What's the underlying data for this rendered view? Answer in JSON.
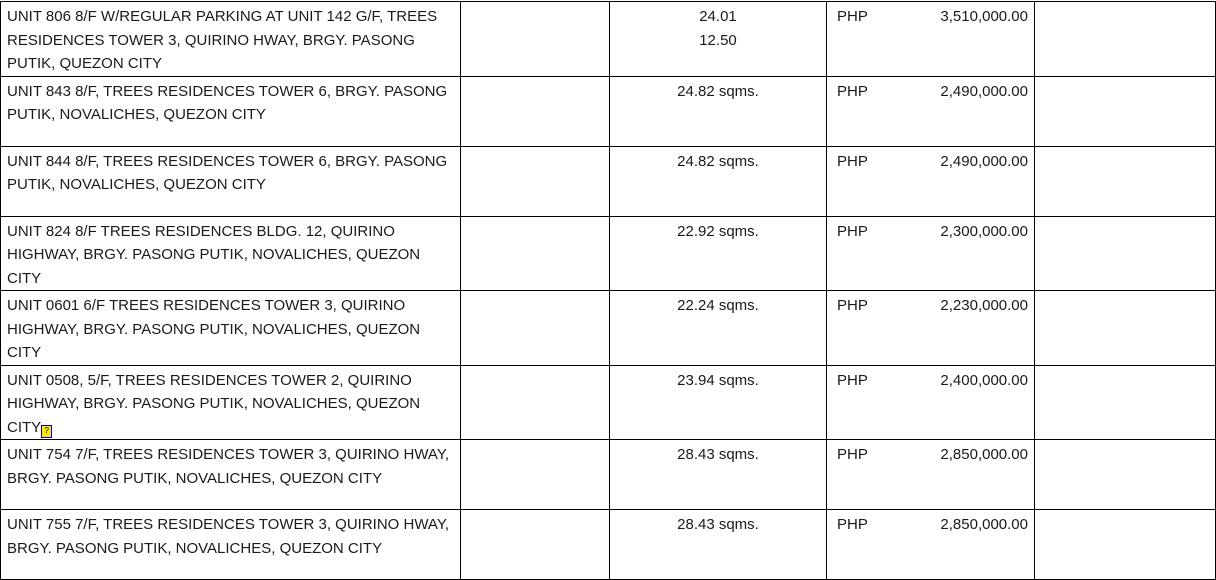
{
  "rows": [
    {
      "property": "UNIT 806 8/F W/REGULAR PARKING AT UNIT 142 G/F, TREES RESIDENCES TOWER 3,  QUIRINO HWAY, BRGY. PASONG PUTIK, QUEZON CITY",
      "area_lines": [
        "24.01",
        "12.50"
      ],
      "currency": "PHP",
      "amount": "3,510,000.00"
    },
    {
      "property": "UNIT 843 8/F, TREES RESIDENCES TOWER 6, BRGY. PASONG PUTIK, NOVALICHES, QUEZON CITY",
      "area_lines": [
        "24.82 sqms."
      ],
      "currency": "PHP",
      "amount": "2,490,000.00"
    },
    {
      "property": "UNIT 844 8/F, TREES RESIDENCES TOWER 6, BRGY. PASONG PUTIK, NOVALICHES, QUEZON CITY",
      "area_lines": [
        "24.82 sqms."
      ],
      "currency": "PHP",
      "amount": "2,490,000.00"
    },
    {
      "property": "UNIT 824 8/F TREES RESIDENCES BLDG. 12, QUIRINO HIGHWAY, BRGY. PASONG PUTIK, NOVALICHES, QUEZON CITY",
      "area_lines": [
        "22.92 sqms."
      ],
      "currency": "PHP",
      "amount": "2,300,000.00"
    },
    {
      "property": "UNIT 0601 6/F TREES RESIDENCES TOWER 3, QUIRINO HIGHWAY, BRGY. PASONG PUTIK, NOVALICHES, QUEZON CITY",
      "area_lines": [
        "22.24 sqms."
      ],
      "currency": "PHP",
      "amount": "2,230,000.00"
    },
    {
      "property": "UNIT 0508, 5/F, TREES RESIDENCES TOWER 2, QUIRINO HIGHWAY, BRGY. PASONG PUTIK, NOVALICHES, QUEZON CITY",
      "trailing_glyph": "?",
      "area_lines": [
        "23.94 sqms."
      ],
      "currency": "PHP",
      "amount": "2,400,000.00"
    },
    {
      "property": "UNIT 754 7/F, TREES RESIDENCES TOWER 3, QUIRINO HWAY, BRGY. PASONG PUTIK, NOVALICHES,  QUEZON CITY",
      "area_lines": [
        "28.43 sqms."
      ],
      "currency": "PHP",
      "amount": "2,850,000.00"
    },
    {
      "property": "UNIT 755 7/F, TREES RESIDENCES TOWER 3, QUIRINO HWAY, BRGY. PASONG PUTIK, NOVALICHES,  QUEZON CITY",
      "area_lines": [
        "28.43 sqms."
      ],
      "currency": "PHP",
      "amount": "2,850,000.00"
    }
  ]
}
